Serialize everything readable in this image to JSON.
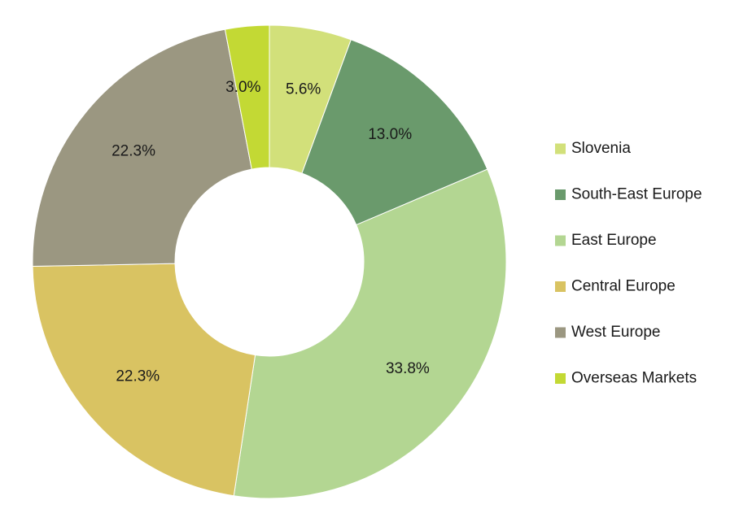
{
  "chart_data": {
    "type": "pie",
    "variant": "donut",
    "title": "",
    "legend_position": "right",
    "slices": [
      {
        "label": "Slovenia",
        "value": 5.6,
        "display": "5.6%",
        "color": "#d2e07a"
      },
      {
        "label": "South-East Europe",
        "value": 13.0,
        "display": "13.0%",
        "color": "#6a9a6c"
      },
      {
        "label": "East Europe",
        "value": 33.8,
        "display": "33.8%",
        "color": "#b3d692"
      },
      {
        "label": "Central Europe",
        "value": 22.3,
        "display": "22.3%",
        "color": "#d9c362"
      },
      {
        "label": "West Europe",
        "value": 22.3,
        "display": "22.3%",
        "color": "#9b9781"
      },
      {
        "label": "Overseas Markets",
        "value": 3.0,
        "display": "3.0%",
        "color": "#c3d934"
      }
    ]
  }
}
